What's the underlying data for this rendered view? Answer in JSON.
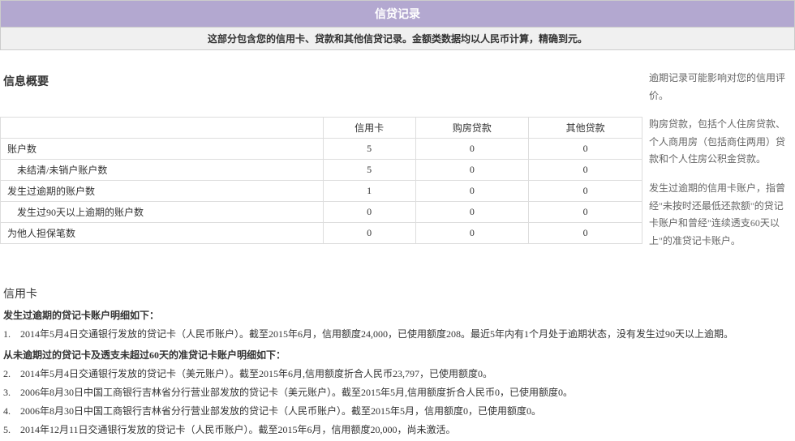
{
  "header": "信贷记录",
  "subtitle": "这部分包含您的信用卡、贷款和其他信贷记录。金额类数据均以人民币计算，精确到元。",
  "summaryTitle": "信息概要",
  "notes": {
    "n1": "逾期记录可能影响对您的信用评价。",
    "n2": "购房贷款，包括个人住房贷款、个人商用房（包括商住两用）贷款和个人住房公积金贷款。",
    "n3": "发生过逾期的信用卡账户，指曾经\"未按时还最低还款额\"的贷记卡账户和曾经\"连续透支60天以上\"的准贷记卡账户。"
  },
  "table": {
    "cols": {
      "c1": "信用卡",
      "c2": "购房贷款",
      "c3": "其他贷款"
    },
    "rows": {
      "r1": {
        "label": "账户数",
        "c1": "5",
        "c2": "0",
        "c3": "0",
        "indent": false
      },
      "r2": {
        "label": "未结清/未销户账户数",
        "c1": "5",
        "c2": "0",
        "c3": "0",
        "indent": true
      },
      "r3": {
        "label": "发生过逾期的账户数",
        "c1": "1",
        "c2": "0",
        "c3": "0",
        "indent": false
      },
      "r4": {
        "label": "发生过90天以上逾期的账户数",
        "c1": "0",
        "c2": "0",
        "c3": "0",
        "indent": true
      },
      "r5": {
        "label": "为他人担保笔数",
        "c1": "0",
        "c2": "0",
        "c3": "0",
        "indent": false
      }
    }
  },
  "ccTitle": "信用卡",
  "ccSub1": "发生过逾期的贷记卡账户明细如下：",
  "ccSub2": "从未逾期过的贷记卡及透支未超过60天的准贷记卡账户明细如下：",
  "items": {
    "i1": {
      "n": "1.",
      "t": "2014年5月4日交通银行发放的贷记卡（人民币账户）。截至2015年6月，信用额度24,000，已使用额度208。最近5年内有1个月处于逾期状态，没有发生过90天以上逾期。"
    },
    "i2": {
      "n": "2.",
      "t": "2014年5月4日交通银行发放的贷记卡（美元账户）。截至2015年6月,信用额度折合人民币23,797，已使用额度0。"
    },
    "i3": {
      "n": "3.",
      "t": "2006年8月30日中国工商银行吉林省分行营业部发放的贷记卡（美元账户）。截至2015年5月,信用额度折合人民币0，已使用额度0。"
    },
    "i4": {
      "n": "4.",
      "t": "2006年8月30日中国工商银行吉林省分行营业部发放的贷记卡（人民币账户）。截至2015年5月，信用额度0，已使用额度0。"
    },
    "i5": {
      "n": "5.",
      "t": "2014年12月11日交通银行发放的贷记卡（人民币账户）。截至2015年6月，信用额度20,000，尚未激活。"
    }
  }
}
